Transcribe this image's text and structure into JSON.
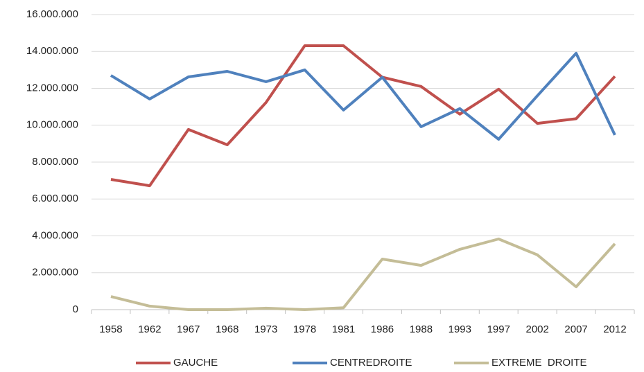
{
  "chart_data": {
    "type": "line",
    "categories": [
      "1958",
      "1962",
      "1967",
      "1968",
      "1973",
      "1978",
      "1981",
      "1986",
      "1988",
      "1993",
      "1997",
      "2002",
      "2007",
      "2012"
    ],
    "series": [
      {
        "name": "GAUCHE",
        "color": "#c0504d",
        "values": [
          7060000,
          6720000,
          9770000,
          8940000,
          11230000,
          14310000,
          14310000,
          12600000,
          12100000,
          10600000,
          11950000,
          10100000,
          10350000,
          12650000
        ]
      },
      {
        "name": "CENTREDROITE",
        "color": "#4f81bd",
        "values": [
          12700000,
          11420000,
          12620000,
          12920000,
          12360000,
          13000000,
          10820000,
          12600000,
          9920000,
          10900000,
          9240000,
          11600000,
          13900000,
          9470000
        ]
      },
      {
        "name": "EXTREME  DROITE",
        "color": "#c4bd97",
        "values": [
          710000,
          190000,
          0,
          0,
          80000,
          0,
          100000,
          2740000,
          2400000,
          3270000,
          3830000,
          2970000,
          1240000,
          3570000
        ]
      }
    ],
    "ylim": [
      0,
      16000000
    ],
    "yticks": [
      0,
      {
        "value": 2000000,
        "label": "2.000.000"
      },
      {
        "value": 4000000,
        "label": "4.000.000"
      },
      {
        "value": 6000000,
        "label": "6.000.000"
      },
      {
        "value": 8000000,
        "label": "8.000.000"
      },
      {
        "value": 10000000,
        "label": "10.000.000"
      },
      {
        "value": 12000000,
        "label": "12.000.000"
      },
      {
        "value": 14000000,
        "label": "14.000.000"
      },
      {
        "value": 16000000,
        "label": "16.000.000"
      }
    ],
    "grid": true,
    "legend": "bottom"
  }
}
